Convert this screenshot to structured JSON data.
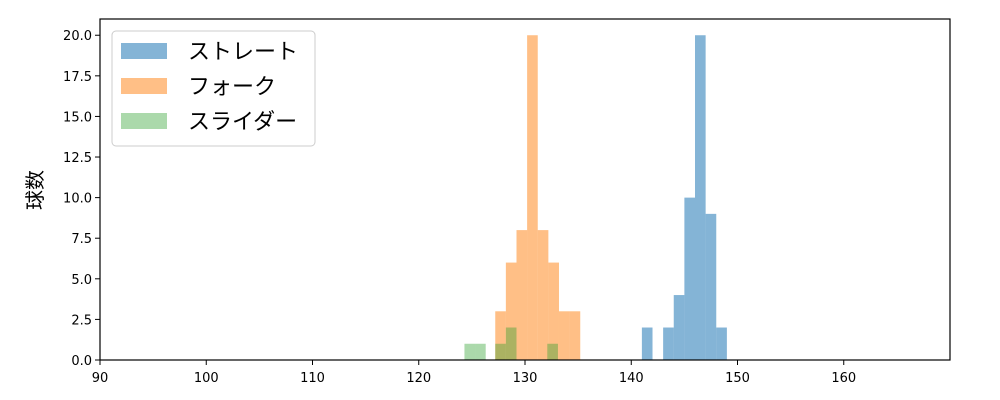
{
  "chart_data": {
    "type": "histogram",
    "ylabel": "球数",
    "xlabel": "",
    "xlim": [
      90,
      170
    ],
    "ylim": [
      0,
      21
    ],
    "xticks": [
      90,
      100,
      110,
      120,
      130,
      140,
      150,
      160
    ],
    "yticks": [
      0.0,
      2.5,
      5.0,
      7.5,
      10.0,
      12.5,
      15.0,
      17.5,
      20.0
    ],
    "ytick_labels": [
      "0.0",
      "2.5",
      "5.0",
      "7.5",
      "10.0",
      "12.5",
      "15.0",
      "17.5",
      "20.0"
    ],
    "legend_position": "top-left",
    "series": [
      {
        "name": "ストレート",
        "color": "#1f77b4",
        "opacity": 0.55,
        "bins": [
          {
            "x0": 141.0,
            "x1": 142.0,
            "count": 2
          },
          {
            "x0": 143.0,
            "x1": 144.0,
            "count": 2
          },
          {
            "x0": 144.0,
            "x1": 145.0,
            "count": 4
          },
          {
            "x0": 145.0,
            "x1": 146.0,
            "count": 10
          },
          {
            "x0": 146.0,
            "x1": 147.0,
            "count": 20
          },
          {
            "x0": 147.0,
            "x1": 148.0,
            "count": 9
          },
          {
            "x0": 148.0,
            "x1": 149.0,
            "count": 2
          }
        ]
      },
      {
        "name": "フォーク",
        "color": "#ff7f0e",
        "opacity": 0.5,
        "bins": [
          {
            "x0": 127.2,
            "x1": 128.2,
            "count": 3
          },
          {
            "x0": 128.2,
            "x1": 129.2,
            "count": 6
          },
          {
            "x0": 129.2,
            "x1": 130.2,
            "count": 8
          },
          {
            "x0": 130.2,
            "x1": 131.2,
            "count": 20
          },
          {
            "x0": 131.2,
            "x1": 132.2,
            "count": 8
          },
          {
            "x0": 132.2,
            "x1": 133.2,
            "count": 6
          },
          {
            "x0": 133.2,
            "x1": 134.2,
            "count": 3
          },
          {
            "x0": 134.2,
            "x1": 135.2,
            "count": 3
          }
        ]
      },
      {
        "name": "スライダー",
        "color": "#2ca02c",
        "opacity": 0.4,
        "bins": [
          {
            "x0": 124.3,
            "x1": 125.3,
            "count": 1
          },
          {
            "x0": 125.3,
            "x1": 126.3,
            "count": 1
          },
          {
            "x0": 127.2,
            "x1": 128.2,
            "count": 1
          },
          {
            "x0": 128.2,
            "x1": 129.2,
            "count": 2
          },
          {
            "x0": 132.1,
            "x1": 133.1,
            "count": 1
          }
        ]
      }
    ]
  }
}
